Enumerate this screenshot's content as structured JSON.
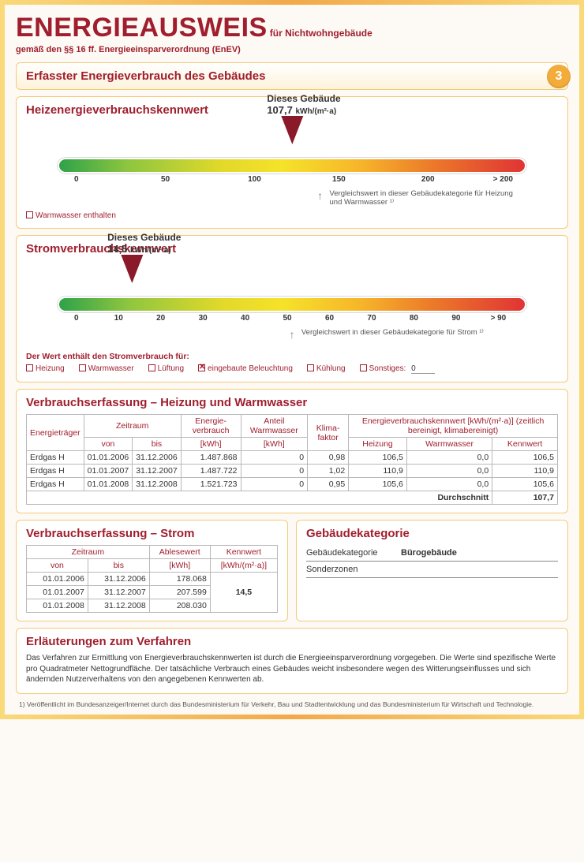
{
  "header": {
    "title": "ENERGIEAUSWEIS",
    "subtitle": "für Nichtwohngebäude",
    "line2": "gemäß den §§ 16 ff. Energieeinsparverordnung (EnEV)",
    "page_number": "3",
    "section_title": "Erfasster Energieverbrauch des Gebäudes"
  },
  "heiz": {
    "title": "Heizenergieverbrauchskennwert",
    "marker_label": "Dieses Gebäude",
    "marker_value": "107,7",
    "marker_unit": "kWh/(m²·a)",
    "marker_position_pct": 50,
    "ticks": [
      "0",
      "50",
      "100",
      "150",
      "200",
      "> 200"
    ],
    "tick_positions_pct": [
      4,
      23,
      42,
      60,
      79,
      95
    ],
    "gradient": "linear-gradient(90deg,#2fa24a 0%, #8fc63f 15%, #e2d92a 35%, #f6e22a 48%, #f6b42a 65%, #ec7a2a 80%, #e03434 100%)",
    "compare_arrow_pct": 56,
    "compare_text": "Vergleichswert in dieser Gebäudekategorie für Heizung und Warmwasser ¹⁾",
    "cb_label": "Warmwasser enthalten",
    "cb_checked": false
  },
  "strom": {
    "title": "Stromverbrauchskennwert",
    "marker_label": "Dieses Gebäude",
    "marker_value": "14,5",
    "marker_unit": "kWh/(m²·a)",
    "marker_position_pct": 20,
    "ticks": [
      "0",
      "10",
      "20",
      "30",
      "40",
      "50",
      "60",
      "70",
      "80",
      "90",
      "> 90"
    ],
    "tick_positions_pct": [
      4,
      13,
      22,
      31,
      40,
      49,
      58,
      67,
      76,
      85,
      94
    ],
    "gradient": "linear-gradient(90deg,#2fa24a 0%, #8fc63f 15%, #e2d92a 35%, #f6e22a 48%, #f6b42a 65%, #ec7a2a 80%, #e03434 100%)",
    "compare_arrow_pct": 50,
    "compare_text": "Vergleichswert in dieser Gebäudekategorie für Strom ¹⁾",
    "note": "Der Wert enthält den Stromverbrauch für:",
    "checkboxes": [
      {
        "label": "Heizung",
        "checked": false
      },
      {
        "label": "Warmwasser",
        "checked": false
      },
      {
        "label": "Lüftung",
        "checked": false
      },
      {
        "label": "eingebaute Beleuchtung",
        "checked": true
      },
      {
        "label": "Kühlung",
        "checked": false
      }
    ],
    "sonstiges_label": "Sonstiges:",
    "sonstiges_value": "0"
  },
  "verbrauch_hw": {
    "title": "Verbrauchserfassung – Heizung und Warmwasser",
    "headers": {
      "energietraeger": "Energieträger",
      "zeitraum": "Zeitraum",
      "von": "von",
      "bis": "bis",
      "energieverbrauch": "Energie-verbrauch",
      "kwh": "[kWh]",
      "anteil_ww": "Anteil Warmwasser",
      "kwh2": "[kWh]",
      "klimafaktor": "Klima-faktor",
      "kennwert_group": "Energieverbrauchskennwert [kWh/(m²·a)] (zeitlich bereinigt, klimabereinigt)",
      "heizung": "Heizung",
      "warmwasser": "Warmwasser",
      "kennwert": "Kennwert",
      "durchschnitt": "Durchschnitt"
    },
    "rows": [
      {
        "et": "Erdgas H",
        "von": "01.01.2006",
        "bis": "31.12.2006",
        "ev": "1.487.868",
        "aw": "0",
        "kf": "0,98",
        "h": "106,5",
        "ww": "0,0",
        "kw": "106,5"
      },
      {
        "et": "Erdgas H",
        "von": "01.01.2007",
        "bis": "31.12.2007",
        "ev": "1.487.722",
        "aw": "0",
        "kf": "1,02",
        "h": "110,9",
        "ww": "0,0",
        "kw": "110,9"
      },
      {
        "et": "Erdgas H",
        "von": "01.01.2008",
        "bis": "31.12.2008",
        "ev": "1.521.723",
        "aw": "0",
        "kf": "0,95",
        "h": "105,6",
        "ww": "0,0",
        "kw": "105,6"
      }
    ],
    "durchschnitt_value": "107,7"
  },
  "verbrauch_strom": {
    "title": "Verbrauchserfassung – Strom",
    "headers": {
      "zeitraum": "Zeitraum",
      "von": "von",
      "bis": "bis",
      "ablesewert": "Ablesewert",
      "kwh": "[kWh]",
      "kennwert": "Kennwert",
      "unit": "[kWh/(m²·a)]"
    },
    "rows": [
      {
        "von": "01.01.2006",
        "bis": "31.12.2006",
        "ab": "178.068"
      },
      {
        "von": "01.01.2007",
        "bis": "31.12.2007",
        "ab": "207.599"
      },
      {
        "von": "01.01.2008",
        "bis": "31.12.2008",
        "ab": "208.030"
      }
    ],
    "kennwert_value": "14,5"
  },
  "kategorie": {
    "title": "Gebäudekategorie",
    "rows": [
      {
        "k": "Gebäudekategorie",
        "v": "Bürogebäude"
      },
      {
        "k": "Sonderzonen",
        "v": ""
      }
    ]
  },
  "erlauterung": {
    "title": "Erläuterungen zum Verfahren",
    "text": "Das Verfahren zur Ermittlung von Energieverbrauchskennwerten ist durch die Energieeinsparverordnung vorgegeben. Die Werte sind spezifische Werte pro Quadratmeter Nettogrundfläche. Der tatsächliche Verbrauch eines Gebäudes weicht insbesondere wegen des Witterungseinflusses und sich ändernden Nutzerverhaltens von den angegebenen Kennwerten ab."
  },
  "footnote": "1) Veröffentlicht im Bundesanzeiger/Internet durch das Bundesministerium für Verkehr, Bau und Stadtentwicklung und das Bundesministerium für Wirtschaft und Technologie."
}
